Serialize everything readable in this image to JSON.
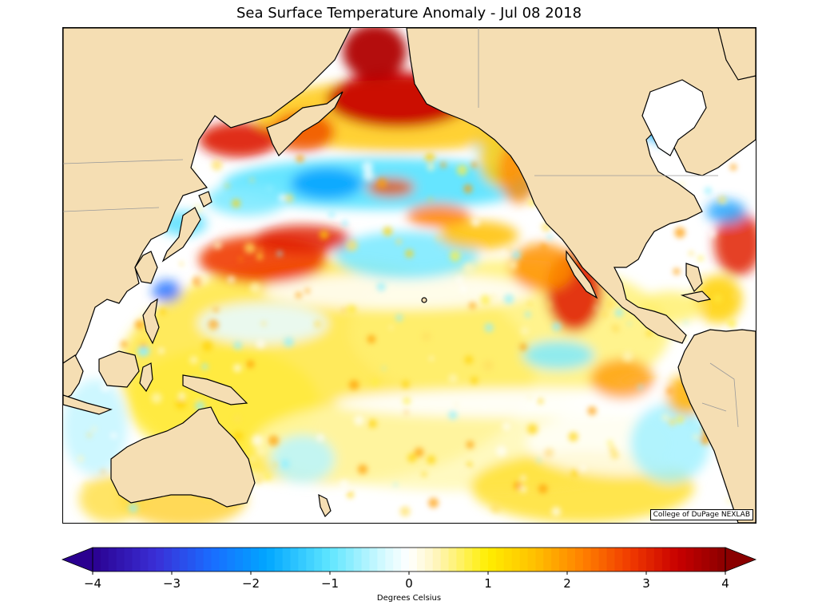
{
  "title": "Sea Surface Temperature Anomaly - Jul 08 2018",
  "credit": "College of DuPage NEXLAB",
  "colorbar": {
    "label": "Degrees Celsius",
    "min": -4,
    "max": 4,
    "tick_labels": [
      "−4",
      "−3",
      "−2",
      "−1",
      "0",
      "1",
      "2",
      "3",
      "4"
    ],
    "tick_values": [
      -4,
      -3,
      -2,
      -1,
      0,
      1,
      2,
      3,
      4
    ],
    "stops": [
      {
        "v": -4,
        "c": "#2a0090"
      },
      {
        "v": -3.2,
        "c": "#3a2fd6"
      },
      {
        "v": -2.5,
        "c": "#1a6cff"
      },
      {
        "v": -1.8,
        "c": "#00a6ff"
      },
      {
        "v": -1.0,
        "c": "#5fe6ff"
      },
      {
        "v": -0.3,
        "c": "#d8faff"
      },
      {
        "v": 0,
        "c": "#ffffff"
      },
      {
        "v": 0.3,
        "c": "#fff6c8"
      },
      {
        "v": 1.0,
        "c": "#ffee00"
      },
      {
        "v": 1.6,
        "c": "#ffbf00"
      },
      {
        "v": 2.2,
        "c": "#ff8000"
      },
      {
        "v": 2.8,
        "c": "#f03a00"
      },
      {
        "v": 3.4,
        "c": "#c80000"
      },
      {
        "v": 4,
        "c": "#8a0000"
      }
    ]
  },
  "colors": {
    "land": "#f5deb3",
    "coast": "#000000",
    "border": "#9a9a9a"
  }
}
